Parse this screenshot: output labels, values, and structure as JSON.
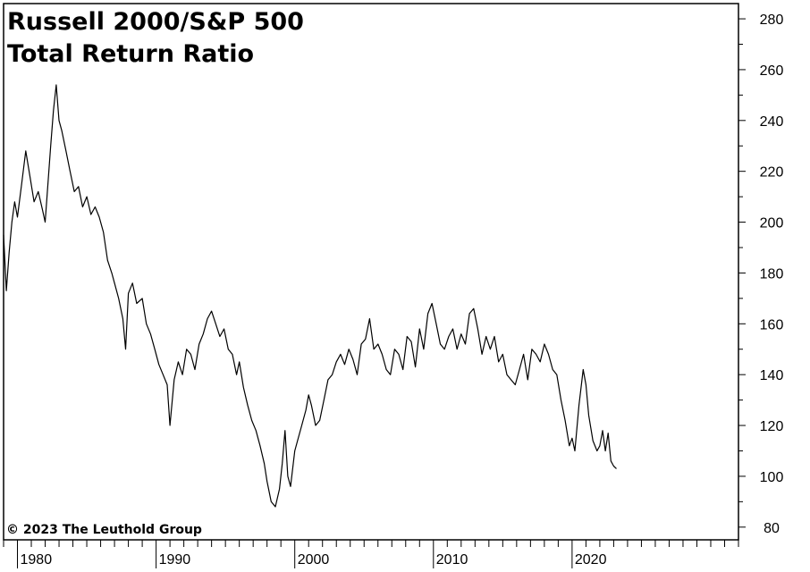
{
  "chart_data": {
    "type": "line",
    "title_lines": [
      "Russell 2000/S&P 500",
      "Total Return Ratio"
    ],
    "annotation": "© 2023 The Leuthold Group",
    "xlabel": "",
    "ylabel": "",
    "xlim": [
      1979,
      2032
    ],
    "ylim": [
      75,
      286
    ],
    "y_ticks": [
      80,
      100,
      120,
      140,
      160,
      180,
      200,
      220,
      240,
      260,
      280
    ],
    "x_ticks": [
      1980,
      1990,
      2000,
      2010,
      2020
    ],
    "y_axis_side": "right",
    "grid": false,
    "line_color": "#000000",
    "series": [
      {
        "x": [
          1979.0,
          1979.2,
          1979.4,
          1979.6,
          1979.8,
          1980.0,
          1980.3,
          1980.6,
          1980.9,
          1981.2,
          1981.5,
          1981.8,
          1982.0,
          1982.2,
          1982.4,
          1982.6,
          1982.8,
          1983.0,
          1983.2,
          1983.5,
          1983.8,
          1984.1,
          1984.4,
          1984.7,
          1985.0,
          1985.3,
          1985.6,
          1985.9,
          1986.2,
          1986.5,
          1986.8,
          1987.0,
          1987.3,
          1987.6,
          1987.8,
          1988.0,
          1988.3,
          1988.6,
          1989.0,
          1989.3,
          1989.6,
          1989.9,
          1990.2,
          1990.5,
          1990.8,
          1991.0,
          1991.3,
          1991.6,
          1991.9,
          1992.2,
          1992.5,
          1992.8,
          1993.1,
          1993.4,
          1993.7,
          1994.0,
          1994.3,
          1994.6,
          1994.9,
          1995.2,
          1995.5,
          1995.8,
          1996.0,
          1996.3,
          1996.6,
          1996.9,
          1997.2,
          1997.5,
          1997.8,
          1998.0,
          1998.3,
          1998.6,
          1998.9,
          1999.1,
          1999.3,
          1999.5,
          1999.7,
          2000.0,
          2000.2,
          2000.5,
          2000.8,
          2001.0,
          2001.2,
          2001.5,
          2001.8,
          2002.1,
          2002.4,
          2002.7,
          2003.0,
          2003.3,
          2003.6,
          2003.9,
          2004.2,
          2004.5,
          2004.8,
          2005.1,
          2005.4,
          2005.7,
          2006.0,
          2006.3,
          2006.6,
          2006.9,
          2007.2,
          2007.5,
          2007.8,
          2008.1,
          2008.4,
          2008.7,
          2009.0,
          2009.3,
          2009.6,
          2009.9,
          2010.2,
          2010.5,
          2010.8,
          2011.1,
          2011.4,
          2011.7,
          2012.0,
          2012.3,
          2012.6,
          2012.9,
          2013.2,
          2013.5,
          2013.8,
          2014.1,
          2014.4,
          2014.7,
          2015.0,
          2015.3,
          2015.6,
          2015.9,
          2016.2,
          2016.5,
          2016.8,
          2017.1,
          2017.4,
          2017.7,
          2018.0,
          2018.3,
          2018.6,
          2018.9,
          2019.2,
          2019.5,
          2019.8,
          2020.0,
          2020.2,
          2020.5,
          2020.8,
          2021.0,
          2021.2,
          2021.5,
          2021.8,
          2022.0,
          2022.2,
          2022.4,
          2022.6,
          2022.8,
          2023.0,
          2023.2
        ],
        "y": [
          195,
          173,
          188,
          200,
          208,
          202,
          215,
          228,
          218,
          208,
          212,
          205,
          200,
          215,
          230,
          244,
          254,
          240,
          236,
          228,
          220,
          212,
          214,
          206,
          210,
          203,
          206,
          202,
          196,
          185,
          180,
          176,
          170,
          162,
          150,
          172,
          176,
          168,
          170,
          160,
          156,
          150,
          144,
          140,
          136,
          120,
          138,
          145,
          140,
          150,
          148,
          142,
          152,
          156,
          162,
          165,
          160,
          155,
          158,
          150,
          148,
          140,
          145,
          135,
          128,
          122,
          118,
          112,
          105,
          98,
          90,
          88,
          95,
          105,
          118,
          100,
          96,
          110,
          114,
          120,
          126,
          132,
          128,
          120,
          122,
          130,
          138,
          140,
          145,
          148,
          144,
          150,
          146,
          140,
          152,
          154,
          162,
          150,
          152,
          148,
          142,
          140,
          150,
          148,
          142,
          155,
          153,
          143,
          158,
          150,
          164,
          168,
          160,
          152,
          150,
          155,
          158,
          150,
          156,
          152,
          164,
          166,
          158,
          148,
          155,
          150,
          155,
          145,
          148,
          140,
          138,
          136,
          142,
          148,
          138,
          150,
          148,
          145,
          152,
          148,
          142,
          140,
          130,
          122,
          112,
          115,
          110,
          128,
          142,
          136,
          124,
          114,
          110,
          112,
          118,
          110,
          117,
          106,
          104,
          103
        ]
      }
    ]
  }
}
